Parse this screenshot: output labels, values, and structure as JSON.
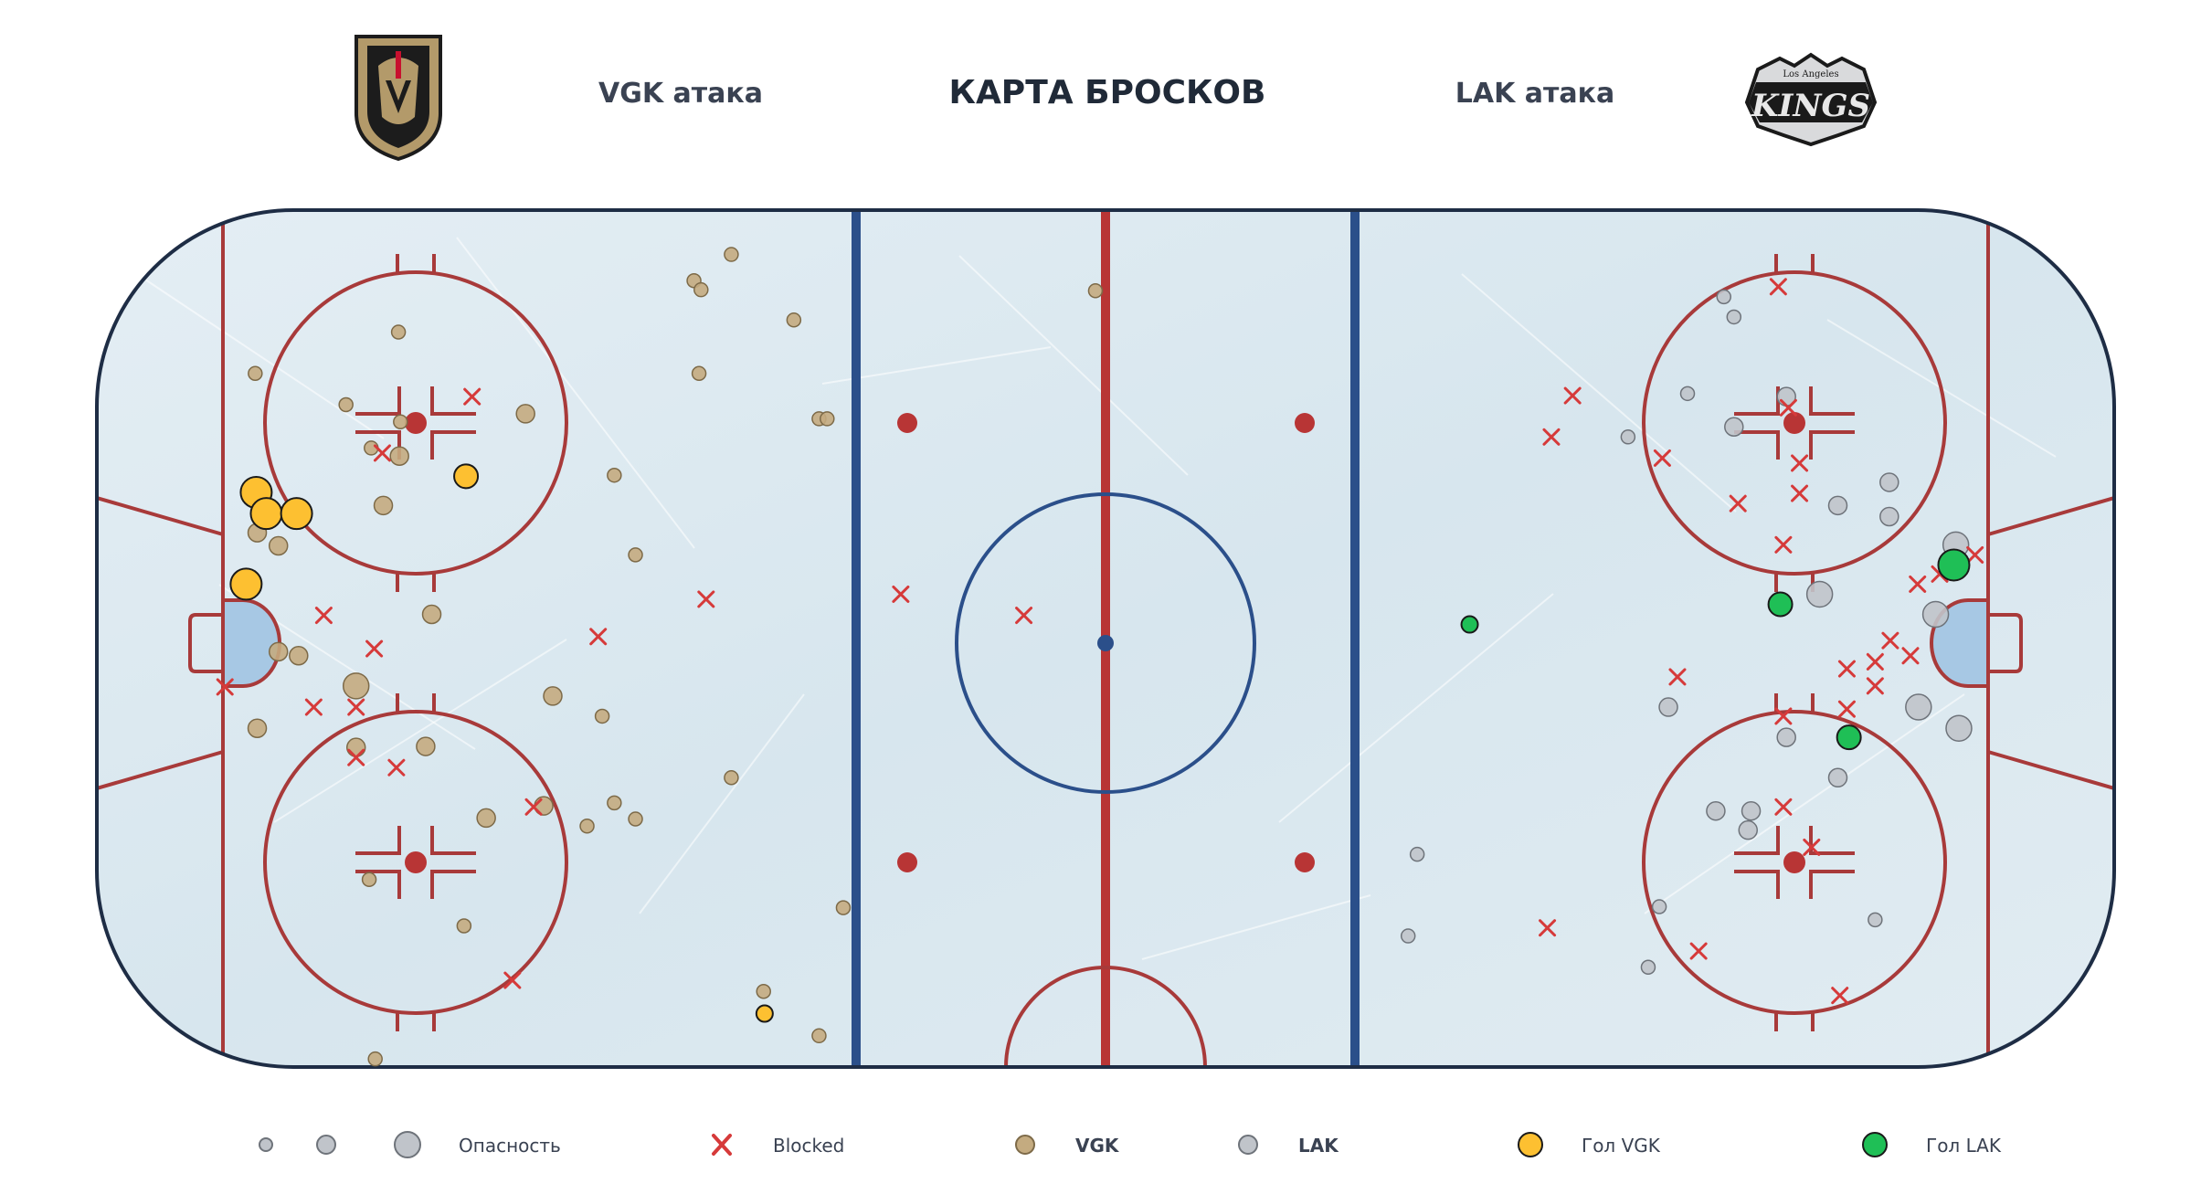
{
  "header": {
    "title": "КАРТА БРОСКОВ",
    "left_label": "VGK атака",
    "right_label": "LAK атака",
    "left_logo": "vgk-helmet-logo",
    "right_logo": "la-kings-logo",
    "right_logo_text": "KINGS",
    "right_logo_subtext": "Los Angeles"
  },
  "legend": {
    "danger_label": "Опасность",
    "blocked_label": "Blocked",
    "vgk_label": "VGK",
    "lak_label": "LAK",
    "goal_vgk_label": "Гол VGK",
    "goal_lak_label": "Гол LAK"
  },
  "colors": {
    "vgk_shot": "#c4ab80",
    "lak_shot": "#c0c4ca",
    "goal_vgk": "#fdc031",
    "goal_lak": "#1fbf56",
    "blocked": "#d63a3a",
    "rink_red": "#a83a3a",
    "blue_line": "#2b4f8a",
    "board": "#1e2d45",
    "ice": "#dde9f0"
  },
  "chart_data": {
    "type": "scatter",
    "title": "КАРТА БРОСКОВ",
    "x_range": [
      -100,
      100
    ],
    "y_range": [
      -42.5,
      42.5
    ],
    "series": [
      {
        "name": "VGK",
        "kind": "shot",
        "points": [
          [
            -37.1,
            38.1,
            1
          ],
          [
            -40.8,
            35.5,
            1
          ],
          [
            -40.1,
            34.6,
            1
          ],
          [
            -30.9,
            31.6,
            1
          ],
          [
            -40.3,
            26.3,
            1
          ],
          [
            -28.4,
            21.8,
            1
          ],
          [
            -27.6,
            21.8,
            1
          ],
          [
            -70.1,
            30.4,
            1
          ],
          [
            -84.3,
            26.3,
            1
          ],
          [
            -75.3,
            23.2,
            1
          ],
          [
            -57.5,
            22.3,
            2
          ],
          [
            -69.9,
            21.5,
            1
          ],
          [
            -72.8,
            18.9,
            1
          ],
          [
            -70.0,
            18.1,
            2
          ],
          [
            -71.6,
            13.2,
            2
          ],
          [
            -48.7,
            16.2,
            1
          ],
          [
            -46.6,
            8.3,
            1
          ],
          [
            -84.1,
            10.5,
            2
          ],
          [
            -82.0,
            9.2,
            2
          ],
          [
            -66.8,
            2.4,
            2
          ],
          [
            -82.0,
            -1.3,
            2
          ],
          [
            -80.0,
            -1.7,
            2
          ],
          [
            -74.3,
            -4.7,
            3
          ],
          [
            -54.8,
            -5.7,
            2
          ],
          [
            -49.9,
            -7.7,
            1
          ],
          [
            -84.1,
            -8.9,
            2
          ],
          [
            -74.3,
            -10.8,
            2
          ],
          [
            -67.4,
            -10.7,
            2
          ],
          [
            -37.1,
            -13.8,
            1
          ],
          [
            -55.7,
            -16.6,
            2
          ],
          [
            -48.7,
            -16.3,
            1
          ],
          [
            -46.6,
            -17.9,
            1
          ],
          [
            -61.4,
            -17.8,
            2
          ],
          [
            -51.4,
            -18.6,
            1
          ],
          [
            -73.0,
            -23.9,
            1
          ],
          [
            -63.6,
            -28.5,
            1
          ],
          [
            -26.0,
            -26.7,
            1
          ],
          [
            -33.9,
            -35.0,
            1
          ],
          [
            -28.4,
            -39.4,
            1
          ],
          [
            -72.4,
            -41.7,
            1
          ],
          [
            -1.0,
            34.5,
            1
          ]
        ]
      },
      {
        "name": "LAK",
        "kind": "shot",
        "points": [
          [
            61.3,
            33.9,
            1
          ],
          [
            62.3,
            31.9,
            1
          ],
          [
            57.7,
            24.3,
            1
          ],
          [
            67.5,
            24.0,
            2
          ],
          [
            62.3,
            21.0,
            2
          ],
          [
            51.8,
            20.0,
            1
          ],
          [
            77.7,
            15.5,
            2
          ],
          [
            72.6,
            13.2,
            2
          ],
          [
            77.7,
            12.1,
            2
          ],
          [
            84.3,
            9.3,
            3
          ],
          [
            70.8,
            4.4,
            3
          ],
          [
            82.3,
            2.4,
            3
          ],
          [
            55.8,
            -6.8,
            2
          ],
          [
            80.6,
            -6.8,
            3
          ],
          [
            84.6,
            -8.9,
            3
          ],
          [
            67.5,
            -9.8,
            2
          ],
          [
            72.6,
            -13.8,
            2
          ],
          [
            60.5,
            -17.1,
            2
          ],
          [
            64.0,
            -17.1,
            2
          ],
          [
            63.7,
            -19.0,
            2
          ],
          [
            54.9,
            -26.6,
            1
          ],
          [
            76.3,
            -27.9,
            1
          ],
          [
            53.8,
            -32.6,
            1
          ],
          [
            30.9,
            -21.4,
            1
          ],
          [
            30.0,
            -29.5,
            1
          ]
        ]
      },
      {
        "name": "Blocked",
        "kind": "blocked",
        "points": [
          [
            -62.8,
            24.0
          ],
          [
            -71.7,
            18.4
          ],
          [
            -77.5,
            2.3
          ],
          [
            -72.5,
            -1.0
          ],
          [
            -50.3,
            0.2
          ],
          [
            -87.3,
            -4.8
          ],
          [
            -78.5,
            -6.8
          ],
          [
            -74.3,
            -6.8
          ],
          [
            -74.3,
            -11.8
          ],
          [
            -70.3,
            -12.8
          ],
          [
            -56.7,
            -16.7
          ],
          [
            -58.8,
            -33.9
          ],
          [
            -39.6,
            3.9
          ],
          [
            -20.3,
            4.4
          ],
          [
            -8.1,
            2.3
          ],
          [
            46.3,
            24.1
          ],
          [
            44.2,
            20.0
          ],
          [
            55.2,
            17.9
          ],
          [
            66.7,
            34.9
          ],
          [
            67.7,
            22.9
          ],
          [
            68.8,
            17.4
          ],
          [
            68.8,
            14.4
          ],
          [
            62.7,
            13.4
          ],
          [
            67.2,
            9.3
          ],
          [
            80.5,
            5.4
          ],
          [
            82.7,
            6.4
          ],
          [
            86.2,
            8.3
          ],
          [
            77.8,
            -0.2
          ],
          [
            76.3,
            -2.3
          ],
          [
            79.8,
            -1.7
          ],
          [
            73.5,
            -3.0
          ],
          [
            76.3,
            -4.7
          ],
          [
            56.7,
            -3.8
          ],
          [
            67.2,
            -7.7
          ],
          [
            73.5,
            -7.0
          ],
          [
            67.2,
            -16.7
          ],
          [
            70.0,
            -20.7
          ],
          [
            43.8,
            -28.7
          ],
          [
            58.8,
            -31.0
          ],
          [
            72.8,
            -35.4
          ]
        ]
      },
      {
        "name": "Гол VGK",
        "kind": "goal",
        "points": [
          [
            -84.2,
            14.5
          ],
          [
            -83.2,
            12.4
          ],
          [
            -80.2,
            12.4
          ],
          [
            -85.2,
            5.4
          ],
          [
            -63.4,
            16.1
          ],
          [
            -33.8,
            -37.2
          ]
        ]
      },
      {
        "name": "Гол LAK",
        "kind": "goal",
        "points": [
          [
            84.1,
            7.3
          ],
          [
            66.9,
            3.4
          ],
          [
            36.1,
            1.4
          ],
          [
            73.7,
            -9.8
          ]
        ]
      }
    ]
  }
}
